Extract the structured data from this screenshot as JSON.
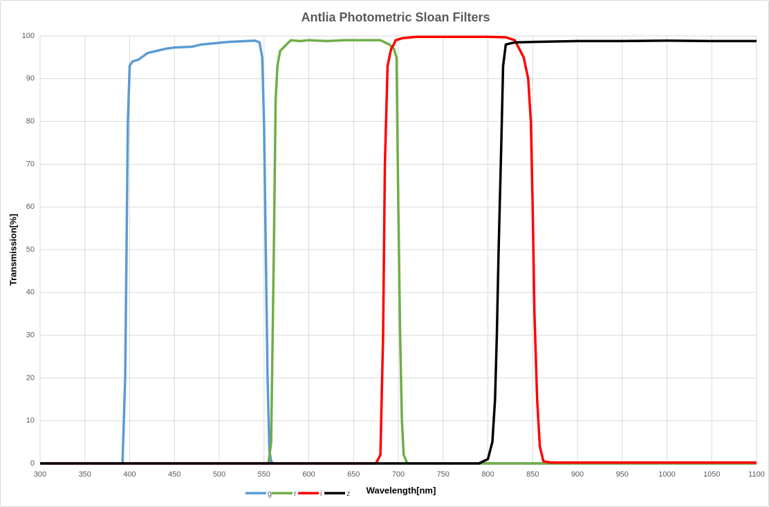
{
  "chart_data": {
    "type": "line",
    "title": "Antlia Photometric Sloan Filters",
    "x_label": "Wavelength[nm]",
    "y_label": "Transmission[%]",
    "xlim": [
      300,
      1100
    ],
    "ylim": [
      0,
      100
    ],
    "xticks": [
      300,
      350,
      400,
      450,
      500,
      550,
      600,
      650,
      700,
      750,
      800,
      850,
      900,
      950,
      1000,
      1050,
      1100
    ],
    "yticks": [
      0,
      10,
      20,
      30,
      40,
      50,
      60,
      70,
      80,
      90,
      100
    ],
    "grid": true,
    "legend": "bottom",
    "series": [
      {
        "name": "g",
        "color": "#5b9bd5",
        "x": [
          300,
          392,
          395,
          398,
          400,
          403,
          410,
          420,
          430,
          440,
          450,
          460,
          470,
          480,
          490,
          500,
          510,
          520,
          530,
          540,
          545,
          548,
          550,
          552,
          554,
          556,
          558,
          560,
          1100
        ],
        "values": [
          0,
          0,
          20,
          80,
          93,
          94,
          94.5,
          96,
          96.5,
          97,
          97.3,
          97.4,
          97.5,
          98,
          98.2,
          98.4,
          98.6,
          98.7,
          98.8,
          98.9,
          98.5,
          95,
          80,
          50,
          20,
          3,
          0.5,
          0,
          0
        ]
      },
      {
        "name": "r",
        "color": "#70ad47",
        "x": [
          300,
          555,
          558,
          561,
          563,
          565,
          568,
          575,
          580,
          590,
          600,
          620,
          640,
          660,
          680,
          690,
          695,
          698,
          700,
          702,
          704,
          706,
          710,
          1100
        ],
        "values": [
          0,
          0,
          5,
          50,
          85,
          93,
          96.5,
          98,
          99,
          98.8,
          99,
          98.8,
          99,
          99,
          99,
          98,
          97,
          95,
          60,
          30,
          10,
          2,
          0,
          0
        ]
      },
      {
        "name": "i",
        "color": "#ff0000",
        "x": [
          300,
          675,
          680,
          683,
          685,
          688,
          692,
          695,
          697,
          705,
          720,
          750,
          800,
          820,
          830,
          835,
          840,
          845,
          848,
          850,
          852,
          855,
          858,
          862,
          870,
          1100
        ],
        "values": [
          0,
          0,
          2,
          30,
          70,
          93,
          97,
          98,
          99,
          99.5,
          99.8,
          99.8,
          99.8,
          99.7,
          99,
          97,
          95,
          90,
          80,
          60,
          35,
          15,
          4,
          0.5,
          0.2,
          0.2
        ]
      },
      {
        "name": "z",
        "color": "#000000",
        "x": [
          300,
          790,
          800,
          805,
          808,
          810,
          812,
          815,
          817,
          820,
          830,
          850,
          900,
          950,
          1000,
          1050,
          1100
        ],
        "values": [
          0,
          0,
          1,
          5,
          15,
          30,
          50,
          75,
          93,
          98,
          98.5,
          98.6,
          98.8,
          98.8,
          98.9,
          98.8,
          98.8
        ]
      }
    ]
  }
}
